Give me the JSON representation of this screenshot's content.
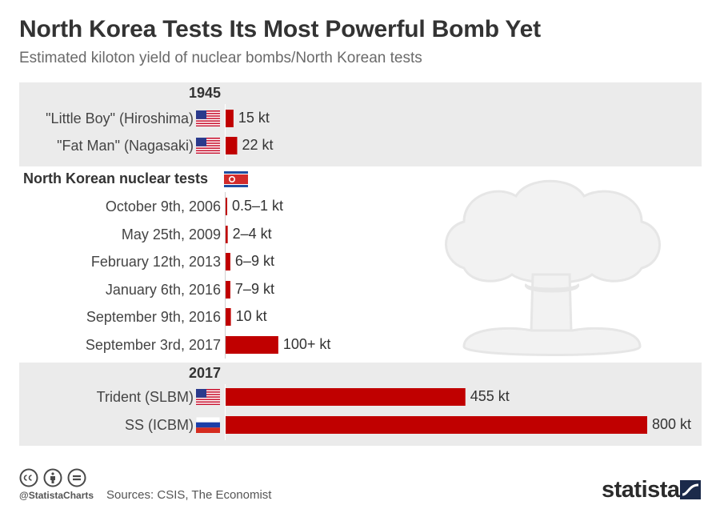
{
  "header": {
    "title": "North Korea Tests Its Most Powerful Bomb Yet",
    "subtitle": "Estimated kiloton yield of nuclear bombs/North Korean tests"
  },
  "sections": [
    {
      "label": "1945",
      "flag": "us-flag-icon"
    },
    {
      "label": "North Korean nuclear tests",
      "flag": "north-korea-flag-icon"
    },
    {
      "label": "2017",
      "flag": ""
    }
  ],
  "chart_data": {
    "type": "bar",
    "orientation": "horizontal",
    "title": "North Korea Tests Its Most Powerful Bomb Yet",
    "subtitle": "Estimated kiloton yield of nuclear bombs/North Korean tests",
    "categories": [
      "\"Little Boy\" (Hiroshima)",
      "\"Fat Man\" (Nagasaki)",
      "October 9th, 2006",
      "May 25th, 2009",
      "February 12th, 2013",
      "January 6th, 2016",
      "September 9th, 2016",
      "September 3rd, 2017",
      "Trident (SLBM)",
      "SS (ICBM)"
    ],
    "values": [
      15,
      22,
      1,
      4,
      9,
      9,
      10,
      100,
      455,
      800
    ],
    "value_labels": [
      "15 kt",
      "22 kt",
      "0.5–1 kt",
      "2–4 kt",
      "6–9 kt",
      "7–9 kt",
      "10 kt",
      "100+ kt",
      "455 kt",
      "800 kt"
    ],
    "groups": [
      "1945",
      "1945",
      "North Korean nuclear tests",
      "North Korean nuclear tests",
      "North Korean nuclear tests",
      "North Korean nuclear tests",
      "North Korean nuclear tests",
      "North Korean nuclear tests",
      "2017",
      "2017"
    ],
    "flags": [
      "us-flag-icon",
      "us-flag-icon",
      "",
      "",
      "",
      "",
      "",
      "",
      "us-flag-icon",
      "russia-flag-icon"
    ],
    "xlim": [
      0,
      800
    ],
    "bar_color": "#c00000",
    "grid": false,
    "legend": "none"
  },
  "footer": {
    "handle": "@StatistaCharts",
    "sources": "Sources: CSIS, The Economist",
    "brand": "statista",
    "license_icons": [
      "cc-icon",
      "attribution-icon",
      "no-derivatives-icon"
    ]
  },
  "colors": {
    "bar": "#c00000",
    "band": "#ebebeb",
    "title": "#333333",
    "subtitle": "#6a6a6a",
    "background_graphic": "#f0f0f0"
  },
  "background_graphic": "mushroom-cloud-icon"
}
